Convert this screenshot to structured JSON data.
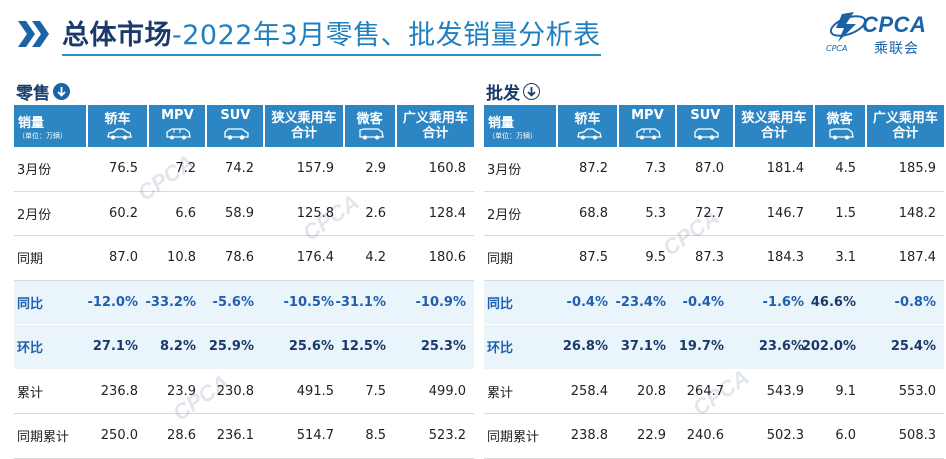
{
  "title": {
    "bold": "总体市场",
    "rest": "-2022年3月零售、批发销量分析表"
  },
  "logo": {
    "abbr": "CPCA",
    "cn": "乘联会",
    "mini": "CPCA"
  },
  "watermark": "CPCA",
  "columns": [
    {
      "label": "销量",
      "unit": "（单位：万辆）"
    },
    {
      "label": "轿车",
      "icon": "sedan-icon"
    },
    {
      "label": "MPV",
      "icon": "mpv-icon"
    },
    {
      "label": "SUV",
      "icon": "suv-icon"
    },
    {
      "label": "狭义乘用车",
      "label2": "合计"
    },
    {
      "label": "微客",
      "icon": "minivan-icon"
    },
    {
      "label": "广义乘用车",
      "label2": "合计"
    }
  ],
  "retail": {
    "section_label": "零售",
    "rows": [
      {
        "name": "3月份",
        "v": [
          "76.5",
          "7.2",
          "74.2",
          "157.9",
          "2.9",
          "160.8"
        ]
      },
      {
        "name": "2月份",
        "v": [
          "60.2",
          "6.6",
          "58.9",
          "125.8",
          "2.6",
          "128.4"
        ]
      },
      {
        "name": "同期",
        "v": [
          "87.0",
          "10.8",
          "78.6",
          "176.4",
          "4.2",
          "180.6"
        ]
      },
      {
        "name": "同比",
        "v": [
          "-12.0%",
          "-33.2%",
          "-5.6%",
          "-10.5%",
          "-31.1%",
          "-10.9%"
        ],
        "highlight": true
      },
      {
        "name": "环比",
        "v": [
          "27.1%",
          "8.2%",
          "25.9%",
          "25.6%",
          "12.5%",
          "25.3%"
        ],
        "highlight": true
      },
      {
        "name": "累计",
        "v": [
          "236.8",
          "23.9",
          "230.8",
          "491.5",
          "7.5",
          "499.0"
        ]
      },
      {
        "name": "同期累计",
        "v": [
          "250.0",
          "28.6",
          "236.1",
          "514.7",
          "8.5",
          "523.2"
        ]
      }
    ]
  },
  "wholesale": {
    "section_label": "批发",
    "rows": [
      {
        "name": "3月份",
        "v": [
          "87.2",
          "7.3",
          "87.0",
          "181.4",
          "4.5",
          "185.9"
        ]
      },
      {
        "name": "2月份",
        "v": [
          "68.8",
          "5.3",
          "72.7",
          "146.7",
          "1.5",
          "148.2"
        ]
      },
      {
        "name": "同期",
        "v": [
          "87.5",
          "9.5",
          "87.3",
          "184.3",
          "3.1",
          "187.4"
        ]
      },
      {
        "name": "同比",
        "v": [
          "-0.4%",
          "-23.4%",
          "-0.4%",
          "-1.6%",
          "46.6%",
          "-0.8%"
        ],
        "highlight": true
      },
      {
        "name": "环比",
        "v": [
          "26.8%",
          "37.1%",
          "19.7%",
          "23.6%",
          "202.0%",
          "25.4%"
        ],
        "highlight": true
      },
      {
        "name": "累计",
        "v": [
          "258.4",
          "20.8",
          "264.7",
          "543.9",
          "9.1",
          "553.0"
        ]
      },
      {
        "name": "同期累计",
        "v": [
          "238.8",
          "22.9",
          "240.6",
          "502.3",
          "6.0",
          "508.3"
        ]
      }
    ]
  },
  "colors": {
    "header_bg": "#2b86c3",
    "title": "#1a3a6b",
    "accent": "#1f7fbf",
    "highlight_row": "#eaf5fb"
  }
}
